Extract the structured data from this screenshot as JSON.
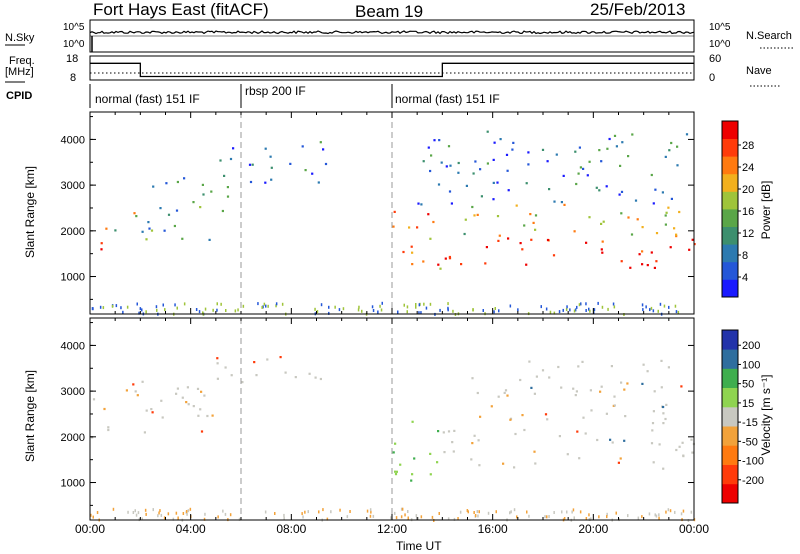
{
  "header": {
    "station": "Fort Hays East (fitACF)",
    "beam": "Beam 19",
    "date": "25/Feb/2013"
  },
  "status_panels": {
    "nsky_label": "N.Sky",
    "nsearch_label": "N.Search",
    "nsky_ticks": [
      "10^5",
      "10^0"
    ],
    "nsearch_ticks": [
      "10^5",
      "10^0"
    ],
    "freq_label_1": "Freq.",
    "freq_label_2": "[MHz]",
    "freq_ticks": [
      "18",
      "8"
    ],
    "nave_label": "Nave",
    "nave_ticks": [
      "60",
      "0"
    ],
    "cpid_label": "CPID",
    "cpid_segments": [
      {
        "label": "normal (fast) 151 IF",
        "start_hour": 0,
        "end_hour": 6
      },
      {
        "label": "rbsp 200 IF",
        "start_hour": 6,
        "end_hour": 12
      },
      {
        "label": "normal (fast) 151 IF",
        "start_hour": 12,
        "end_hour": 24
      }
    ],
    "freq_series": [
      {
        "hour": 0,
        "mhz": 15.6
      },
      {
        "hour": 2,
        "mhz": 15.6
      },
      {
        "hour": 2,
        "mhz": 9.6
      },
      {
        "hour": 14,
        "mhz": 9.6
      },
      {
        "hour": 14,
        "mhz": 15.6
      },
      {
        "hour": 24,
        "mhz": 15.6
      }
    ]
  },
  "chart_data": [
    {
      "type": "heatmap",
      "panel": "power",
      "ylabel": "Slant Range [km]",
      "yticks": [
        "1000",
        "2000",
        "3000",
        "4000"
      ],
      "ylim": [
        180,
        4600
      ],
      "xlim": [
        0,
        24
      ],
      "colorbar_label": "Power [dB]",
      "colorbar_ticks": [
        "4",
        "8",
        "12",
        "16",
        "20",
        "24",
        "28"
      ],
      "colorbar_colors": [
        "#1a1aff",
        "#2457d8",
        "#2c7ab0",
        "#3c8f6e",
        "#5aa648",
        "#9fc43a",
        "#f2b01e",
        "#ff7a10",
        "#ff3b0a",
        "#ee0000"
      ],
      "regions": [
        {
          "hour_start": 0.0,
          "hour_end": 0.6,
          "range_low": 1250,
          "range_high": 1950,
          "level": 0.92
        },
        {
          "hour_start": 0.6,
          "hour_end": 2.0,
          "range_low": 2000,
          "range_high": 2700,
          "level": 0.55
        },
        {
          "hour_start": 2.0,
          "hour_end": 5.5,
          "range_low": 1800,
          "range_high": 3300,
          "level": 0.35
        },
        {
          "hour_start": 5.0,
          "hour_end": 9.5,
          "range_low": 3000,
          "range_high": 4000,
          "level": 0.2
        },
        {
          "hour_start": 12.0,
          "hour_end": 14.0,
          "range_low": 950,
          "range_high": 2500,
          "level": 0.8
        },
        {
          "hour_start": 14.0,
          "hour_end": 24.0,
          "range_low": 1200,
          "range_high": 1900,
          "level": 0.95
        },
        {
          "hour_start": 14.0,
          "hour_end": 24.0,
          "range_low": 1900,
          "range_high": 2600,
          "level": 0.55
        },
        {
          "hour_start": 13.0,
          "hour_end": 24.0,
          "range_low": 2600,
          "range_high": 4200,
          "level": 0.25
        }
      ]
    },
    {
      "type": "heatmap",
      "panel": "velocity",
      "ylabel": "Slant Range [km]",
      "yticks": [
        "1000",
        "2000",
        "3000",
        "4000"
      ],
      "ylim": [
        180,
        4600
      ],
      "xlim": [
        0,
        24
      ],
      "xticks": [
        "00:00",
        "04:00",
        "08:00",
        "12:00",
        "16:00",
        "20:00",
        "00:00"
      ],
      "xlabel": "Time UT",
      "colorbar_label": "Velocity [m s⁻¹]",
      "colorbar_ticks": [
        "200",
        "100",
        "50",
        "15",
        "-15",
        "-50",
        "-100",
        "-200"
      ],
      "colorbar_colors": [
        "#2233aa",
        "#2f6e9e",
        "#3fae4e",
        "#8fd450",
        "#c8c8c0",
        "#f2a23a",
        "#ff7a10",
        "#ff3b0a",
        "#ee0000"
      ],
      "regions": [
        {
          "hour_start": 0.0,
          "hour_end": 0.6,
          "range_low": 1900,
          "range_high": 2900,
          "velocity": -20
        },
        {
          "hour_start": 0.6,
          "hour_end": 5.5,
          "range_low": 2000,
          "range_high": 3300,
          "velocity": 0
        },
        {
          "hour_start": 5.0,
          "hour_end": 9.5,
          "range_low": 3100,
          "range_high": 3800,
          "velocity": 0
        },
        {
          "hour_start": 12.0,
          "hour_end": 14.0,
          "range_low": 1000,
          "range_high": 2500,
          "velocity": 40
        },
        {
          "hour_start": 14.0,
          "hour_end": 24.0,
          "range_low": 1300,
          "range_high": 2200,
          "velocity": 0
        },
        {
          "hour_start": 15.0,
          "hour_end": 24.0,
          "range_low": 2300,
          "range_high": 3700,
          "velocity": 0
        }
      ]
    }
  ]
}
